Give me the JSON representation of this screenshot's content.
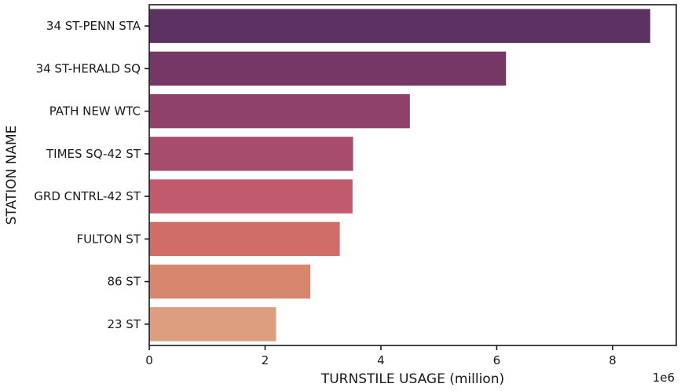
{
  "chart_data": {
    "type": "bar",
    "orientation": "horizontal",
    "categories": [
      "34 ST-PENN STA",
      "34 ST-HERALD SQ",
      "PATH NEW WTC",
      "TIMES SQ-42 ST",
      "GRD CNTRL-42 ST",
      "FULTON ST",
      "86 ST",
      "23 ST"
    ],
    "values": [
      8650000,
      6160000,
      4500000,
      3520000,
      3510000,
      3290000,
      2780000,
      2190000
    ],
    "xlabel": "TURNSTILE USAGE (million)",
    "ylabel": "STATION NAME",
    "x_offset_label": "1e6",
    "xlim": [
      0,
      9100000
    ],
    "xticks": [
      0,
      2000000,
      4000000,
      6000000,
      8000000
    ],
    "xtick_labels": [
      "0",
      "2",
      "4",
      "6",
      "8"
    ],
    "colors": [
      "#5c3263",
      "#763766",
      "#8f4169",
      "#a84c6d",
      "#c05a6c",
      "#d06d69",
      "#d8876f",
      "#dc9e7e"
    ],
    "grid": false,
    "legend": "none"
  }
}
